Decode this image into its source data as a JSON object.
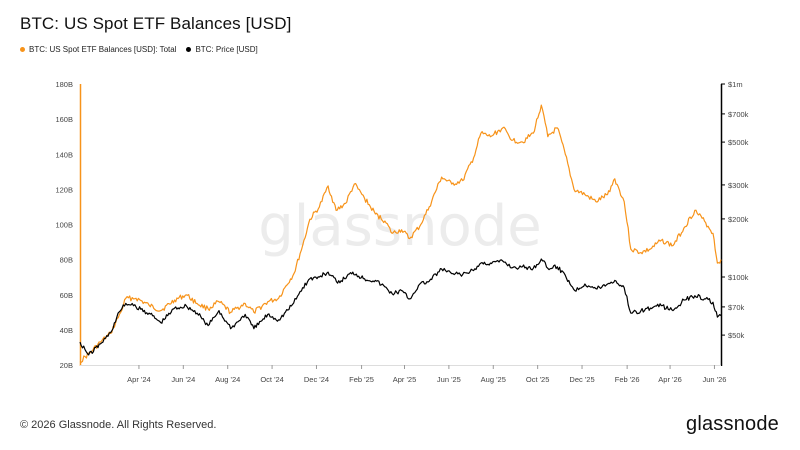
{
  "title": "BTC: US Spot ETF Balances [USD]",
  "legend": [
    {
      "label": "BTC: US Spot ETF Balances [USD]: Total",
      "color": "#f7931a"
    },
    {
      "label": "BTC: Price [USD]",
      "color": "#000000"
    }
  ],
  "watermark": "glassnode",
  "footer": {
    "copyright": "© 2026 Glassnode. All Rights Reserved.",
    "logo": "glassnode"
  },
  "chart_data": {
    "type": "line",
    "x_range": [
      "2024-01-11",
      "2026-06-10"
    ],
    "x_ticks": [
      {
        "date": "2024-04-01",
        "label": "Apr '24"
      },
      {
        "date": "2024-06-01",
        "label": "Jun '24"
      },
      {
        "date": "2024-08-01",
        "label": "Aug '24"
      },
      {
        "date": "2024-10-01",
        "label": "Oct '24"
      },
      {
        "date": "2024-12-01",
        "label": "Dec '24"
      },
      {
        "date": "2025-02-01",
        "label": "Feb '25"
      },
      {
        "date": "2025-04-01",
        "label": "Apr '25"
      },
      {
        "date": "2025-06-01",
        "label": "Jun '25"
      },
      {
        "date": "2025-08-01",
        "label": "Aug '25"
      },
      {
        "date": "2025-10-01",
        "label": "Oct '25"
      },
      {
        "date": "2025-12-01",
        "label": "Dec '25"
      },
      {
        "date": "2026-02-01",
        "label": "Feb '26"
      },
      {
        "date": "2026-04-01",
        "label": "Apr '26"
      },
      {
        "date": "2026-06-01",
        "label": "Jun '26"
      }
    ],
    "y_left": {
      "scale": "linear",
      "range": [
        20,
        180
      ],
      "unit": "B",
      "ticks": [
        {
          "value": 20,
          "label": "20B"
        },
        {
          "value": 40,
          "label": "40B"
        },
        {
          "value": 60,
          "label": "60B"
        },
        {
          "value": 80,
          "label": "80B"
        },
        {
          "value": 100,
          "label": "100B"
        },
        {
          "value": 120,
          "label": "120B"
        },
        {
          "value": 140,
          "label": "140B"
        },
        {
          "value": 160,
          "label": "160B"
        },
        {
          "value": 180,
          "label": "180B"
        }
      ]
    },
    "y_right": {
      "scale": "log",
      "range": [
        35000,
        1000000
      ],
      "ticks": [
        {
          "value": 50000,
          "label": "$50k"
        },
        {
          "value": 70000,
          "label": "$70k"
        },
        {
          "value": 100000,
          "label": "$100k"
        },
        {
          "value": 200000,
          "label": "$200k"
        },
        {
          "value": 300000,
          "label": "$300k"
        },
        {
          "value": 500000,
          "label": "$500k"
        },
        {
          "value": 700000,
          "label": "$700k"
        },
        {
          "value": 1000000,
          "label": "$1m"
        }
      ]
    },
    "grid": false,
    "legend_position": "top-left",
    "series": [
      {
        "name": "BTC: US Spot ETF Balances [USD]: Total",
        "axis": "left",
        "color": "#f7931a",
        "points": [
          [
            "2024-01-11",
            22
          ],
          [
            "2024-01-25",
            27
          ],
          [
            "2024-02-08",
            33
          ],
          [
            "2024-02-22",
            38
          ],
          [
            "2024-03-07",
            50
          ],
          [
            "2024-03-14",
            58
          ],
          [
            "2024-03-28",
            58
          ],
          [
            "2024-04-15",
            54
          ],
          [
            "2024-05-01",
            51
          ],
          [
            "2024-05-20",
            57
          ],
          [
            "2024-06-05",
            60
          ],
          [
            "2024-06-20",
            55
          ],
          [
            "2024-07-05",
            52
          ],
          [
            "2024-07-20",
            56
          ],
          [
            "2024-08-05",
            50
          ],
          [
            "2024-08-25",
            55
          ],
          [
            "2024-09-06",
            50
          ],
          [
            "2024-09-25",
            56
          ],
          [
            "2024-10-10",
            58
          ],
          [
            "2024-10-20",
            65
          ],
          [
            "2024-10-31",
            72
          ],
          [
            "2024-11-12",
            88
          ],
          [
            "2024-11-22",
            103
          ],
          [
            "2024-12-05",
            110
          ],
          [
            "2024-12-17",
            122
          ],
          [
            "2024-12-28",
            108
          ],
          [
            "2025-01-10",
            112
          ],
          [
            "2025-01-22",
            123
          ],
          [
            "2025-02-05",
            115
          ],
          [
            "2025-02-20",
            106
          ],
          [
            "2025-03-05",
            102
          ],
          [
            "2025-03-15",
            95
          ],
          [
            "2025-03-28",
            97
          ],
          [
            "2025-04-08",
            92
          ],
          [
            "2025-04-22",
            99
          ],
          [
            "2025-05-05",
            110
          ],
          [
            "2025-05-22",
            127
          ],
          [
            "2025-06-05",
            123
          ],
          [
            "2025-06-20",
            125
          ],
          [
            "2025-07-05",
            138
          ],
          [
            "2025-07-15",
            152
          ],
          [
            "2025-07-28",
            150
          ],
          [
            "2025-08-14",
            155
          ],
          [
            "2025-08-28",
            148
          ],
          [
            "2025-09-10",
            147
          ],
          [
            "2025-09-25",
            152
          ],
          [
            "2025-10-06",
            168
          ],
          [
            "2025-10-15",
            150
          ],
          [
            "2025-10-28",
            155
          ],
          [
            "2025-11-08",
            140
          ],
          [
            "2025-11-20",
            120
          ],
          [
            "2025-12-05",
            117
          ],
          [
            "2025-12-20",
            113
          ],
          [
            "2026-01-05",
            117
          ],
          [
            "2026-01-15",
            126
          ],
          [
            "2026-01-28",
            113
          ],
          [
            "2026-02-06",
            86
          ],
          [
            "2026-02-20",
            84
          ],
          [
            "2026-03-05",
            86
          ],
          [
            "2026-03-20",
            91
          ],
          [
            "2026-04-05",
            88
          ],
          [
            "2026-04-20",
            98
          ],
          [
            "2026-05-05",
            108
          ],
          [
            "2026-05-20",
            101
          ],
          [
            "2026-05-30",
            95
          ],
          [
            "2026-06-05",
            78
          ],
          [
            "2026-06-10",
            80
          ]
        ]
      },
      {
        "name": "BTC: Price [USD]",
        "axis": "right",
        "color": "#000000",
        "points": [
          [
            "2024-01-11",
            46000
          ],
          [
            "2024-01-23",
            39500
          ],
          [
            "2024-02-08",
            45000
          ],
          [
            "2024-02-22",
            51500
          ],
          [
            "2024-03-05",
            66000
          ],
          [
            "2024-03-14",
            73000
          ],
          [
            "2024-03-28",
            70000
          ],
          [
            "2024-04-15",
            65000
          ],
          [
            "2024-05-01",
            58000
          ],
          [
            "2024-05-20",
            69000
          ],
          [
            "2024-06-05",
            71000
          ],
          [
            "2024-06-20",
            65000
          ],
          [
            "2024-07-05",
            56000
          ],
          [
            "2024-07-20",
            67000
          ],
          [
            "2024-08-05",
            54000
          ],
          [
            "2024-08-25",
            64000
          ],
          [
            "2024-09-06",
            54000
          ],
          [
            "2024-09-25",
            64000
          ],
          [
            "2024-10-10",
            60000
          ],
          [
            "2024-10-29",
            72000
          ],
          [
            "2024-11-12",
            88000
          ],
          [
            "2024-11-22",
            98000
          ],
          [
            "2024-12-05",
            100000
          ],
          [
            "2024-12-17",
            106000
          ],
          [
            "2024-12-30",
            93000
          ],
          [
            "2025-01-20",
            106000
          ],
          [
            "2025-02-05",
            98000
          ],
          [
            "2025-02-20",
            96000
          ],
          [
            "2025-03-05",
            89000
          ],
          [
            "2025-03-15",
            82000
          ],
          [
            "2025-03-28",
            85000
          ],
          [
            "2025-04-08",
            77000
          ],
          [
            "2025-04-22",
            92000
          ],
          [
            "2025-05-05",
            95000
          ],
          [
            "2025-05-22",
            110000
          ],
          [
            "2025-06-05",
            104000
          ],
          [
            "2025-06-20",
            103000
          ],
          [
            "2025-07-05",
            108000
          ],
          [
            "2025-07-15",
            118000
          ],
          [
            "2025-07-28",
            118000
          ],
          [
            "2025-08-14",
            121000
          ],
          [
            "2025-08-28",
            112000
          ],
          [
            "2025-09-10",
            113000
          ],
          [
            "2025-09-25",
            111000
          ],
          [
            "2025-10-06",
            124000
          ],
          [
            "2025-10-15",
            111000
          ],
          [
            "2025-10-28",
            113000
          ],
          [
            "2025-11-08",
            102000
          ],
          [
            "2025-11-21",
            85000
          ],
          [
            "2025-12-05",
            92000
          ],
          [
            "2025-12-20",
            87000
          ],
          [
            "2026-01-05",
            92000
          ],
          [
            "2026-01-15",
            96000
          ],
          [
            "2026-01-28",
            88000
          ],
          [
            "2026-02-06",
            65000
          ],
          [
            "2026-02-20",
            67000
          ],
          [
            "2026-03-05",
            69000
          ],
          [
            "2026-03-20",
            71000
          ],
          [
            "2026-04-05",
            67000
          ],
          [
            "2026-04-20",
            76000
          ],
          [
            "2026-05-05",
            80000
          ],
          [
            "2026-05-20",
            77000
          ],
          [
            "2026-05-30",
            74000
          ],
          [
            "2026-06-05",
            62000
          ],
          [
            "2026-06-10",
            63000
          ]
        ]
      }
    ]
  }
}
